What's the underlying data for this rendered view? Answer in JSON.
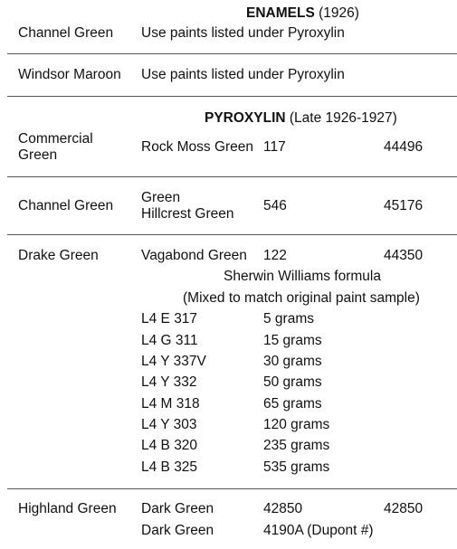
{
  "enamels": {
    "heading": {
      "bold": "ENAMELS",
      "rest": " (1926)"
    },
    "rows": [
      {
        "color": "Channel Green",
        "note": "Use paints listed under Pyroxylin"
      },
      {
        "color": "Windsor Maroon",
        "note": "Use paints listed under Pyroxylin"
      }
    ]
  },
  "pyroxylin": {
    "heading": {
      "bold": "PYROXYLIN",
      "rest": " (Late 1926-1927)"
    },
    "rows": [
      {
        "color_line1": "Commercial",
        "color_line2": "Green",
        "paint": "Rock Moss Green",
        "code": "117",
        "number": "44496"
      },
      {
        "color": "Channel Green",
        "paint_line1": "Green",
        "paint_line2": "Hillcrest Green",
        "code": "546",
        "number": "45176"
      },
      {
        "color": "Drake Green",
        "paint": "Vagabond Green",
        "code": "122",
        "number": "44350"
      }
    ]
  },
  "formula": {
    "title": "Sherwin Williams formula",
    "subtitle": "(Mixed to match original paint sample)",
    "items": [
      {
        "code": "L4 E 317",
        "amount": "5 grams"
      },
      {
        "code": "L4 G 311",
        "amount": "15 grams"
      },
      {
        "code": "L4 Y 337V",
        "amount": "30 grams"
      },
      {
        "code": "L4 Y 332",
        "amount": "50 grams"
      },
      {
        "code": "L4 M 318",
        "amount": "65 grams"
      },
      {
        "code": "L4 Y 303",
        "amount": "120 grams"
      },
      {
        "code": "L4 B 320",
        "amount": "235 grams"
      },
      {
        "code": "L4 B 325",
        "amount": "535 grams"
      }
    ]
  },
  "highland": {
    "color": "Highland Green",
    "rows": [
      {
        "paint": "Dark Green",
        "code": "42850",
        "number": "42850"
      },
      {
        "paint": "Dark Green",
        "code": "4190A (Dupont #)"
      }
    ]
  }
}
